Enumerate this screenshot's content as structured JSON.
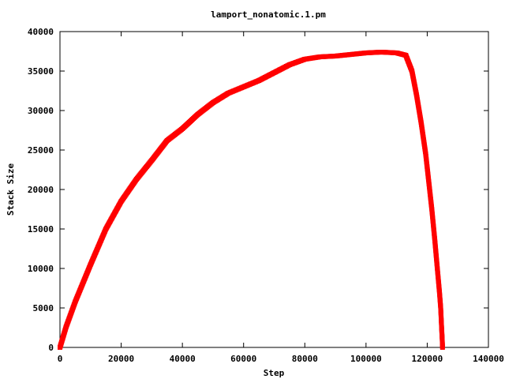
{
  "chart_data": {
    "type": "scatter",
    "title": "lamport_nonatomic.1.pm",
    "xlabel": "Step",
    "ylabel": "Stack Size",
    "xlim": [
      0,
      140000
    ],
    "ylim": [
      0,
      40000
    ],
    "x_ticks": [
      "0",
      "20000",
      "40000",
      "60000",
      "80000",
      "100000",
      "120000",
      "140000"
    ],
    "y_ticks": [
      "0",
      "5000",
      "10000",
      "15000",
      "20000",
      "25000",
      "30000",
      "35000",
      "40000"
    ],
    "grid": false,
    "legend": "none",
    "series_color": "#ff0000",
    "x": [
      0,
      2000,
      5000,
      10000,
      15000,
      20000,
      25000,
      30000,
      35000,
      40000,
      45000,
      50000,
      55000,
      60000,
      65000,
      70000,
      75000,
      80000,
      85000,
      90000,
      95000,
      100000,
      105000,
      110000,
      113000,
      115000,
      116500,
      118000,
      119500,
      120500,
      121500,
      122500,
      123300,
      124000,
      124400,
      124700,
      124900,
      125000
    ],
    "y": [
      0,
      2600,
      5800,
      10500,
      15000,
      18500,
      21300,
      23700,
      26200,
      27700,
      29500,
      31000,
      32200,
      33000,
      33800,
      34800,
      35800,
      36500,
      36800,
      36900,
      37100,
      37300,
      37400,
      37300,
      37000,
      35000,
      32000,
      28500,
      24500,
      21000,
      17500,
      13500,
      10000,
      7000,
      5000,
      2500,
      1000,
      0
    ]
  }
}
